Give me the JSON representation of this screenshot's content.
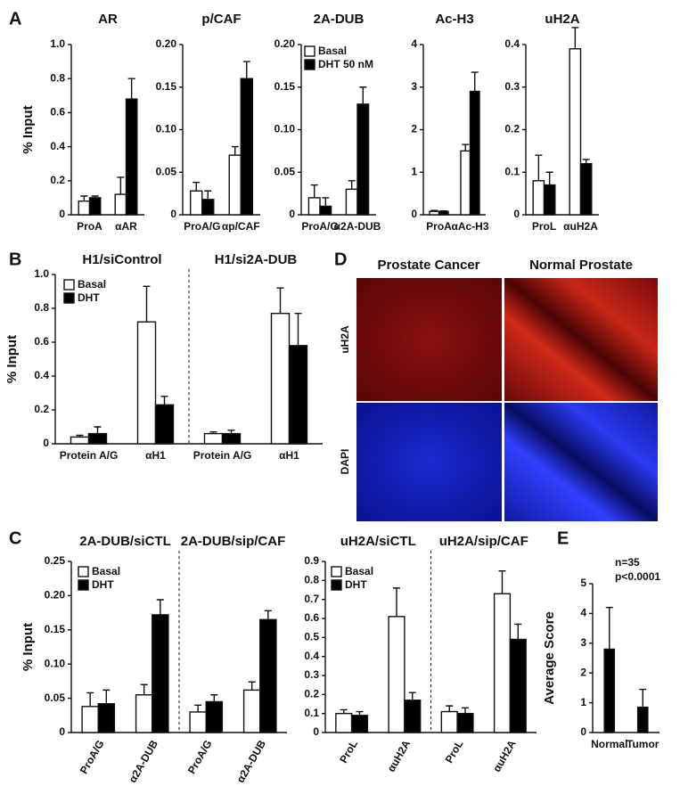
{
  "chart_data": [
    {
      "type": "bar",
      "panel": "A",
      "title": "AR",
      "ylabel": "% Input",
      "categories": [
        "ProA",
        "αAR"
      ],
      "series": [
        {
          "color": "#ffffff",
          "values": [
            0.08,
            0.12
          ],
          "errors": [
            0.03,
            0.1
          ]
        },
        {
          "color": "#000000",
          "values": [
            0.1,
            0.68
          ],
          "errors": [
            0.01,
            0.12
          ]
        }
      ],
      "ylim": [
        0,
        1
      ],
      "yticks": [
        0,
        0.2,
        0.4,
        0.6,
        0.8,
        {
          "value": 1,
          "label": "1.0"
        }
      ]
    },
    {
      "type": "bar",
      "title": "p/CAF",
      "categories": [
        "ProA/G",
        "αp/CAF"
      ],
      "series": [
        {
          "color": "#ffffff",
          "values": [
            0.028,
            0.07
          ],
          "errors": [
            0.01,
            0.01
          ]
        },
        {
          "color": "#000000",
          "values": [
            0.018,
            0.16
          ],
          "errors": [
            0.01,
            0.02
          ]
        }
      ],
      "ylim": [
        0,
        0.2
      ],
      "yticks": [
        0,
        0.05,
        {
          "value": 0.1,
          "label": "0.10"
        },
        0.15,
        {
          "value": 0.2,
          "label": "0.20"
        }
      ]
    },
    {
      "type": "bar",
      "title": "2A-DUB",
      "categories": [
        "ProA/G",
        "α2A-DUB"
      ],
      "series": [
        {
          "name": "Basal",
          "color": "#ffffff",
          "values": [
            0.02,
            0.03
          ],
          "errors": [
            0.015,
            0.01
          ]
        },
        {
          "name": "DHT 50 nM",
          "color": "#000000",
          "values": [
            0.01,
            0.13
          ],
          "errors": [
            0.01,
            0.02
          ]
        }
      ],
      "ylim": [
        0,
        0.2
      ],
      "yticks": [
        0,
        0.05,
        {
          "value": 0.1,
          "label": "0.10"
        },
        0.15,
        {
          "value": 0.2,
          "label": "0.20"
        }
      ]
    },
    {
      "type": "bar",
      "title": "Ac-H3",
      "categories": [
        "ProA",
        "αAc-H3"
      ],
      "series": [
        {
          "color": "#ffffff",
          "values": [
            0.08,
            1.5
          ],
          "errors": [
            0.02,
            0.15
          ]
        },
        {
          "color": "#000000",
          "values": [
            0.08,
            2.9
          ],
          "errors": [
            0.01,
            0.45
          ]
        }
      ],
      "ylim": [
        0,
        4
      ],
      "yticks": [
        0,
        1,
        2,
        3,
        4
      ]
    },
    {
      "type": "bar",
      "title": "uH2A",
      "categories": [
        "ProL",
        "αuH2A"
      ],
      "series": [
        {
          "color": "#ffffff",
          "values": [
            0.08,
            0.39
          ],
          "errors": [
            0.06,
            0.05
          ]
        },
        {
          "color": "#000000",
          "values": [
            0.07,
            0.12
          ],
          "errors": [
            0.03,
            0.01
          ]
        }
      ],
      "ylim": [
        0,
        0.4
      ],
      "yticks": [
        0,
        0.1,
        0.2,
        0.3,
        0.4
      ]
    },
    {
      "type": "bar",
      "panel": "B",
      "ylabel": "% Input",
      "group_titles": [
        "H1/siControl",
        "H1/si2A-DUB"
      ],
      "categories": [
        "Protein A/G",
        "αH1",
        "Protein A/G",
        "αH1"
      ],
      "series": [
        {
          "name": "Basal",
          "color": "#ffffff",
          "values": [
            0.04,
            0.72,
            0.06,
            0.77
          ],
          "errors": [
            0.01,
            0.21,
            0.01,
            0.15
          ]
        },
        {
          "name": "DHT",
          "color": "#000000",
          "values": [
            0.06,
            0.23,
            0.06,
            0.58
          ],
          "errors": [
            0.04,
            0.05,
            0.02,
            0.19
          ]
        }
      ],
      "ylim": [
        0,
        1
      ],
      "yticks": [
        0,
        0.2,
        0.4,
        0.6,
        0.8,
        {
          "value": 1,
          "label": "1.0"
        }
      ]
    },
    {
      "type": "bar",
      "panel": "C",
      "ylabel": "% Input",
      "group_titles": [
        "2A-DUB/siCTL",
        "2A-DUB/sip/CAF"
      ],
      "categories": [
        "ProA/G",
        "α2A-DUB",
        "ProA/G",
        "α2A-DUB"
      ],
      "series": [
        {
          "name": "Basal",
          "color": "#ffffff",
          "values": [
            0.038,
            0.055,
            0.03,
            0.062
          ],
          "errors": [
            0.02,
            0.015,
            0.01,
            0.012
          ]
        },
        {
          "name": "DHT",
          "color": "#000000",
          "values": [
            0.042,
            0.172,
            0.045,
            0.165
          ],
          "errors": [
            0.02,
            0.022,
            0.01,
            0.013
          ]
        }
      ],
      "ylim": [
        0,
        0.25
      ],
      "yticks": [
        0,
        0.05,
        {
          "value": 0.1,
          "label": "0.10"
        },
        0.15,
        {
          "value": 0.2,
          "label": "0.20"
        },
        0.25
      ]
    },
    {
      "type": "bar",
      "group_titles": [
        "uH2A/siCTL",
        "uH2A/sip/CAF"
      ],
      "categories": [
        "ProL",
        "αuH2A",
        "ProL",
        "αuH2A"
      ],
      "series": [
        {
          "name": "Basal",
          "color": "#ffffff",
          "values": [
            0.1,
            0.61,
            0.11,
            0.73
          ],
          "errors": [
            0.02,
            0.15,
            0.03,
            0.12
          ]
        },
        {
          "name": "DHT",
          "color": "#000000",
          "values": [
            0.09,
            0.17,
            0.1,
            0.49
          ],
          "errors": [
            0.02,
            0.04,
            0.03,
            0.08
          ]
        }
      ],
      "ylim": [
        0,
        0.9
      ],
      "yticks": [
        0,
        0.1,
        0.2,
        0.3,
        0.4,
        0.5,
        0.6,
        0.7,
        0.8,
        0.9
      ]
    },
    {
      "type": "bar",
      "panel": "E",
      "ylabel": "Average Score",
      "annotations": [
        "n=35",
        "p<0.0001"
      ],
      "categories": [
        "Normal",
        "Tumor"
      ],
      "series": [
        {
          "color": "#000000",
          "values": [
            2.8,
            0.85
          ],
          "errors": [
            1.4,
            0.6
          ]
        }
      ],
      "ylim": [
        0,
        5
      ],
      "yticks": [
        0,
        1,
        2,
        3,
        4,
        5
      ]
    }
  ],
  "image_panel": {
    "panel": "D",
    "columns": [
      "Prostate Cancer",
      "Normal Prostate"
    ],
    "rows": [
      "uH2A",
      "DAPI"
    ]
  }
}
